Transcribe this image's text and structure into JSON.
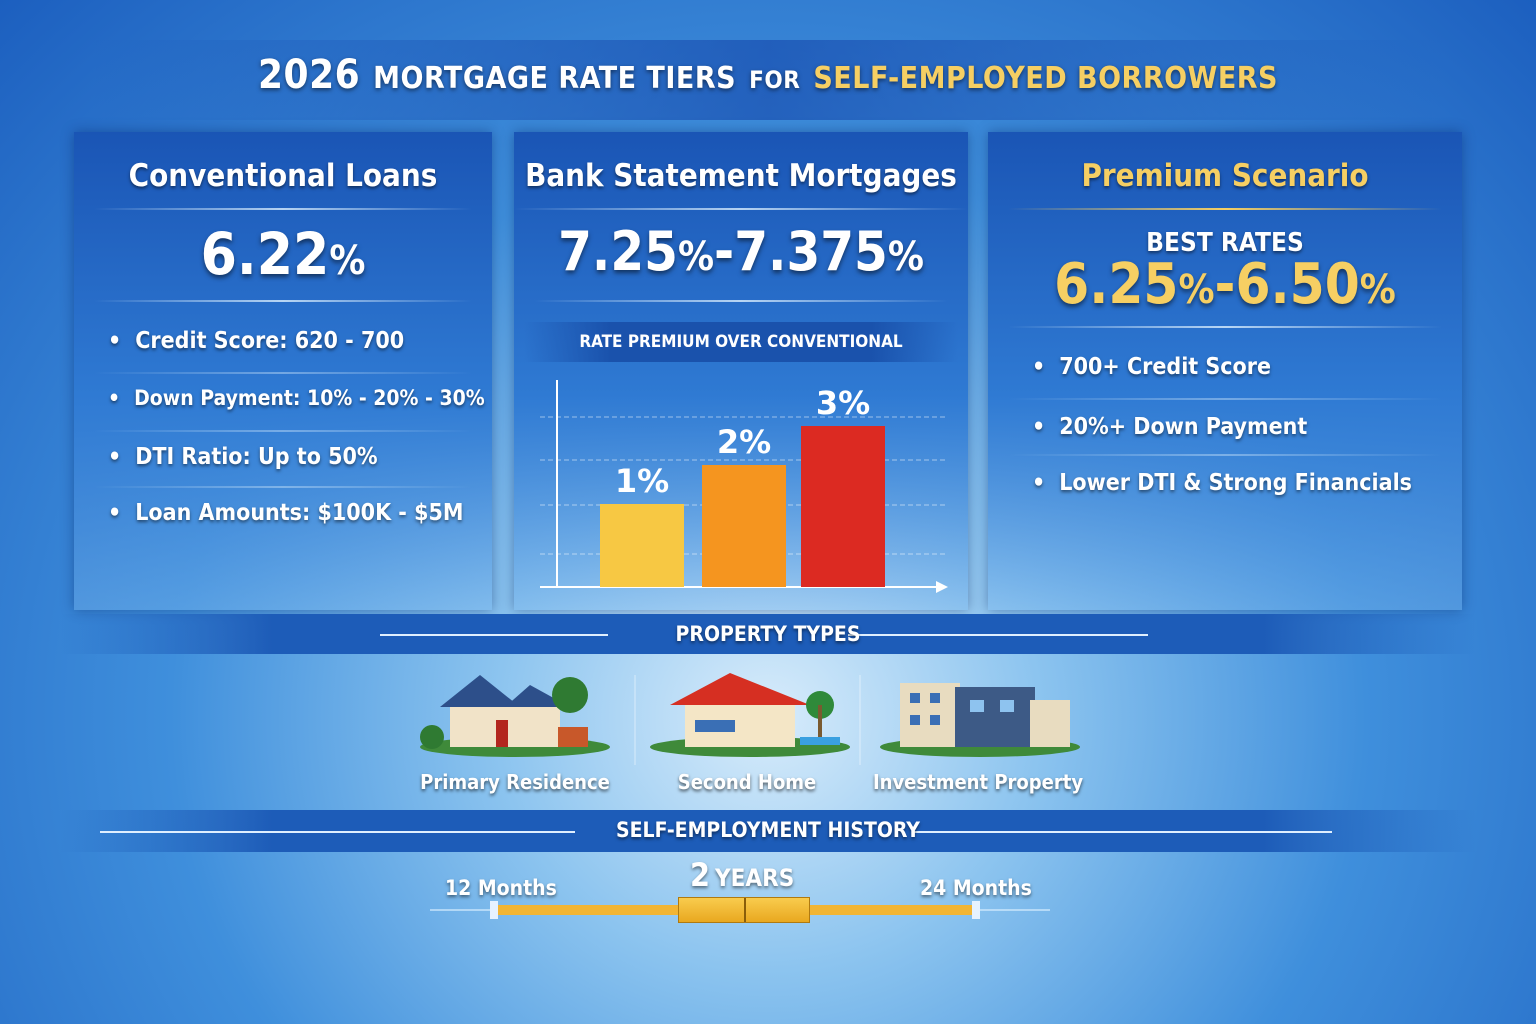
{
  "title": {
    "year": "2026",
    "part1": "MORTGAGE RATE TIERS",
    "part2": "FOR",
    "part3": "SELF-EMPLOYED BORROWERS"
  },
  "panels": {
    "conventional": {
      "heading": "Conventional Loans",
      "rate": "6.22",
      "unit": "%",
      "bullets": [
        "Credit Score: 620 - 700",
        "Down Payment: 10% - 20% - 30%",
        "DTI Ratio: Up to 50%",
        "Loan Amounts: $100K - $5M"
      ]
    },
    "bank_statement": {
      "heading": "Bank Statement Mortgages",
      "rate_low": "7.25",
      "rate_high": "7.375",
      "unit": "%",
      "chart_title": "RATE PREMIUM OVER CONVENTIONAL"
    },
    "premium": {
      "heading": "Premium Scenario",
      "subheading": "BEST RATES",
      "rate_low": "6.25",
      "rate_high": "6.50",
      "unit": "%",
      "bullets": [
        "700+ Credit Score",
        "20%+ Down Payment",
        "Lower DTI & Strong Financials"
      ]
    }
  },
  "chart_data": {
    "type": "bar",
    "title": "RATE PREMIUM OVER CONVENTIONAL",
    "categories": [
      "",
      "",
      ""
    ],
    "values": [
      1,
      2,
      3
    ],
    "labels": [
      "1%",
      "2%",
      "3%"
    ],
    "colors": [
      "#f7c843",
      "#f5951f",
      "#dc2a22"
    ],
    "grid": true
  },
  "property": {
    "heading": "PROPERTY TYPES",
    "items": [
      "Primary Residence",
      "Second Home",
      "Investment Property"
    ]
  },
  "history": {
    "heading": "SELF-EMPLOYMENT HISTORY",
    "min_label": "12 Months",
    "center_num": "2",
    "center_label": "YEARS",
    "max_label": "24 Months"
  },
  "colors": {
    "accent_gold": "#f6cf63",
    "bar_track": "#f2b534"
  }
}
